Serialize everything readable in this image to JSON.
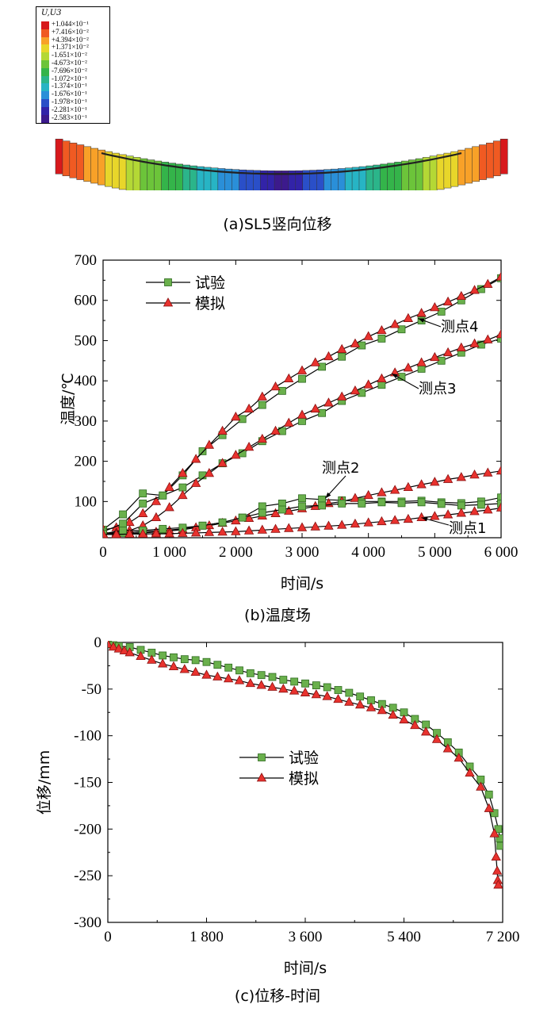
{
  "panel_a": {
    "caption": "(a)SL5竖向位移",
    "contour_legend": {
      "title": "U,U3",
      "entries": [
        {
          "value": "+1.044×10⁻¹",
          "color": "#d7191c"
        },
        {
          "value": "+7.416×10⁻²",
          "color": "#f05a22"
        },
        {
          "value": "+4.394×10⁻²",
          "color": "#f8a128"
        },
        {
          "value": "+1.371×10⁻²",
          "color": "#e8d62a"
        },
        {
          "value": "-1.651×10⁻²",
          "color": "#b4d835"
        },
        {
          "value": "-4.673×10⁻²",
          "color": "#6cc43a"
        },
        {
          "value": "-7.696×10⁻²",
          "color": "#34b44a"
        },
        {
          "value": "-1.072×10⁻¹",
          "color": "#2bb58a"
        },
        {
          "value": "-1.374×10⁻¹",
          "color": "#27b4c4"
        },
        {
          "value": "-1.676×10⁻¹",
          "color": "#2a8fd8"
        },
        {
          "value": "-1.978×10⁻¹",
          "color": "#2a4fc8"
        },
        {
          "value": "-2.281×10⁻¹",
          "color": "#3223a8"
        },
        {
          "value": "-2.583×10⁻¹",
          "color": "#3c1a8c"
        }
      ]
    }
  },
  "chart_data": [
    {
      "type": "line",
      "caption": "(b)温度场",
      "xlabel": "时间/s",
      "ylabel": "温度/℃",
      "xlim": [
        0,
        6000
      ],
      "ylim": [
        10,
        700
      ],
      "xticks": [
        0,
        1000,
        2000,
        3000,
        4000,
        5000,
        6000
      ],
      "xtick_labels": [
        "0",
        "1 000",
        "2 000",
        "3 000",
        "4 000",
        "5 000",
        "6 000"
      ],
      "yticks": [
        100,
        200,
        300,
        400,
        500,
        600,
        700
      ],
      "legend": {
        "position": "top-left",
        "entries": [
          "试验",
          "模拟"
        ]
      },
      "annotations": [
        "测点4",
        "测点3",
        "测点2",
        "测点1"
      ],
      "series": [
        {
          "group": "测点4",
          "marker": "square",
          "label": "试验",
          "x": [
            0,
            300,
            600,
            900,
            1200,
            1500,
            1800,
            2100,
            2400,
            2700,
            3000,
            3300,
            3600,
            3900,
            4200,
            4500,
            4800,
            5100,
            5400,
            5700,
            6000
          ],
          "y": [
            30,
            68,
            120,
            115,
            165,
            225,
            265,
            305,
            340,
            375,
            405,
            435,
            460,
            488,
            505,
            528,
            550,
            572,
            600,
            628,
            655
          ]
        },
        {
          "group": "测点4",
          "marker": "triangle",
          "label": "模拟",
          "x": [
            0,
            200,
            400,
            600,
            800,
            1000,
            1200,
            1400,
            1600,
            1800,
            2000,
            2200,
            2400,
            2600,
            2800,
            3000,
            3200,
            3400,
            3600,
            3800,
            4000,
            4200,
            4400,
            4600,
            4800,
            5000,
            5200,
            5400,
            5600,
            5800,
            6000
          ],
          "y": [
            30,
            35,
            48,
            70,
            100,
            135,
            170,
            205,
            240,
            275,
            310,
            330,
            360,
            385,
            405,
            425,
            445,
            460,
            478,
            492,
            510,
            525,
            540,
            555,
            568,
            582,
            596,
            610,
            625,
            640,
            658
          ]
        },
        {
          "group": "测点3",
          "marker": "square",
          "label": "试验",
          "x": [
            0,
            300,
            600,
            900,
            1200,
            1500,
            1800,
            2100,
            2400,
            2700,
            3000,
            3300,
            3600,
            3900,
            4200,
            4500,
            4800,
            5100,
            5400,
            5700,
            6000
          ],
          "y": [
            25,
            45,
            95,
            115,
            135,
            165,
            195,
            220,
            250,
            275,
            300,
            320,
            350,
            370,
            390,
            410,
            430,
            450,
            470,
            490,
            505
          ]
        },
        {
          "group": "测点3",
          "marker": "triangle",
          "label": "模拟",
          "x": [
            0,
            200,
            400,
            600,
            800,
            1000,
            1200,
            1400,
            1600,
            1800,
            2000,
            2200,
            2400,
            2600,
            2800,
            3000,
            3200,
            3400,
            3600,
            3800,
            4000,
            4200,
            4400,
            4600,
            4800,
            5000,
            5200,
            5400,
            5600,
            5800,
            6000
          ],
          "y": [
            20,
            22,
            28,
            40,
            60,
            85,
            115,
            145,
            170,
            195,
            215,
            235,
            255,
            275,
            295,
            315,
            330,
            345,
            360,
            375,
            390,
            405,
            420,
            432,
            445,
            458,
            470,
            482,
            492,
            502,
            515
          ]
        },
        {
          "group": "测点2",
          "marker": "square",
          "label": "试验",
          "x": [
            0,
            300,
            600,
            900,
            1200,
            1500,
            1800,
            2100,
            2400,
            2700,
            3000,
            3300,
            3600,
            3900,
            4200,
            4500,
            4800,
            5100,
            5400,
            5700,
            6000
          ],
          "y": [
            20,
            22,
            25,
            28,
            32,
            40,
            48,
            60,
            88,
            95,
            108,
            105,
            103,
            100,
            100,
            100,
            102,
            98,
            96,
            100,
            110
          ]
        },
        {
          "group": "测点2",
          "marker": "triangle",
          "label": "模拟",
          "x": [
            0,
            200,
            400,
            600,
            800,
            1000,
            1200,
            1400,
            1600,
            1800,
            2000,
            2200,
            2400,
            2600,
            2800,
            3000,
            3200,
            3400,
            3600,
            3800,
            4000,
            4200,
            4400,
            4600,
            4800,
            5000,
            5200,
            5400,
            5600,
            5800,
            6000
          ],
          "y": [
            18,
            19,
            20,
            22,
            24,
            27,
            30,
            35,
            40,
            46,
            52,
            58,
            64,
            70,
            76,
            82,
            88,
            95,
            100,
            108,
            115,
            122,
            128,
            135,
            142,
            148,
            155,
            160,
            166,
            171,
            176
          ]
        },
        {
          "group": "测点1",
          "marker": "square",
          "label": "试验",
          "x": [
            0,
            300,
            600,
            900,
            1200,
            1500,
            1800,
            2100,
            2400,
            2700,
            3000,
            3300,
            3600,
            3900,
            4200,
            4500,
            4800,
            5100,
            5400,
            5700,
            6000
          ],
          "y": [
            20,
            28,
            28,
            32,
            35,
            40,
            48,
            60,
            72,
            80,
            88,
            90,
            95,
            95,
            98,
            96,
            98,
            94,
            90,
            92,
            95
          ]
        },
        {
          "group": "测点1",
          "marker": "triangle",
          "label": "模拟",
          "x": [
            0,
            200,
            400,
            600,
            800,
            1000,
            1200,
            1400,
            1600,
            1800,
            2000,
            2200,
            2400,
            2600,
            2800,
            3000,
            3200,
            3400,
            3600,
            3800,
            4000,
            4200,
            4400,
            4600,
            4800,
            5000,
            5200,
            5400,
            5600,
            5800,
            6000
          ],
          "y": [
            18,
            18,
            19,
            19,
            20,
            20,
            21,
            22,
            23,
            24,
            25,
            27,
            29,
            31,
            33,
            35,
            37,
            39,
            41,
            44,
            47,
            50,
            53,
            56,
            60,
            63,
            67,
            71,
            75,
            79,
            84
          ]
        }
      ]
    },
    {
      "type": "line",
      "caption": "(c)位移-时间",
      "xlabel": "时间/s",
      "ylabel": "位移/mm",
      "xlim": [
        0,
        7200
      ],
      "ylim": [
        -300,
        0
      ],
      "xticks": [
        0,
        1800,
        3600,
        5400,
        7200
      ],
      "xtick_labels": [
        "0",
        "1 800",
        "3 600",
        "5 400",
        "7 200"
      ],
      "yticks": [
        0,
        -50,
        -100,
        -150,
        -200,
        -250,
        -300
      ],
      "legend": {
        "position": "center",
        "entries": [
          "试验",
          "模拟"
        ]
      },
      "series": [
        {
          "label": "试验",
          "marker": "square",
          "x": [
            0,
            100,
            200,
            400,
            600,
            800,
            1000,
            1200,
            1400,
            1600,
            1800,
            2000,
            2200,
            2400,
            2600,
            2800,
            3000,
            3200,
            3400,
            3600,
            3800,
            4000,
            4200,
            4400,
            4600,
            4800,
            5000,
            5200,
            5400,
            5600,
            5800,
            6000,
            6200,
            6400,
            6600,
            6800,
            6950,
            7050,
            7120,
            7150,
            7160
          ],
          "y": [
            -2,
            -3,
            -4,
            -5,
            -8,
            -11,
            -14,
            -16,
            -18,
            -19,
            -21,
            -24,
            -27,
            -30,
            -33,
            -35,
            -37,
            -40,
            -42,
            -44,
            -46,
            -48,
            -51,
            -54,
            -58,
            -62,
            -66,
            -70,
            -75,
            -82,
            -88,
            -97,
            -107,
            -118,
            -133,
            -147,
            -163,
            -183,
            -200,
            -210,
            -218
          ]
        },
        {
          "label": "模拟",
          "marker": "triangle",
          "x": [
            0,
            100,
            200,
            300,
            400,
            600,
            800,
            1000,
            1200,
            1400,
            1600,
            1800,
            2000,
            2200,
            2400,
            2600,
            2800,
            3000,
            3200,
            3400,
            3600,
            3800,
            4000,
            4200,
            4400,
            4600,
            4800,
            5000,
            5200,
            5400,
            5600,
            5800,
            6000,
            6200,
            6400,
            6600,
            6800,
            6950,
            7050,
            7080,
            7100,
            7110,
            7120
          ],
          "y": [
            -2,
            -5,
            -7,
            -9,
            -11,
            -15,
            -19,
            -23,
            -26,
            -29,
            -32,
            -35,
            -37,
            -39,
            -41,
            -44,
            -46,
            -48,
            -50,
            -52,
            -54,
            -56,
            -58,
            -61,
            -64,
            -67,
            -70,
            -73,
            -78,
            -83,
            -89,
            -96,
            -104,
            -114,
            -124,
            -140,
            -155,
            -178,
            -205,
            -230,
            -245,
            -255,
            -260
          ]
        }
      ]
    }
  ]
}
